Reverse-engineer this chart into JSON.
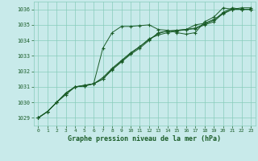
{
  "title": "Graphe pression niveau de la mer (hPa)",
  "bg_color": "#c8eaea",
  "grid_color": "#88ccbb",
  "line_color": "#1a5c28",
  "text_color": "#1a5c28",
  "xlim": [
    -0.5,
    23.5
  ],
  "ylim": [
    1028.5,
    1036.5
  ],
  "yticks": [
    1029,
    1030,
    1031,
    1032,
    1033,
    1034,
    1035,
    1036
  ],
  "xticks": [
    0,
    1,
    2,
    3,
    4,
    5,
    6,
    7,
    8,
    9,
    10,
    11,
    12,
    13,
    14,
    15,
    16,
    17,
    18,
    19,
    20,
    21,
    22,
    23
  ],
  "series": [
    [
      1029.0,
      1029.4,
      1030.0,
      1030.5,
      1031.0,
      1031.1,
      1031.2,
      1033.5,
      1034.5,
      1034.9,
      1034.9,
      1034.95,
      1035.0,
      1034.7,
      1034.65,
      1034.5,
      1034.4,
      1034.5,
      1035.2,
      1035.5,
      1036.1,
      1036.0,
      1036.0,
      1036.0
    ],
    [
      1029.0,
      1029.4,
      1030.0,
      1030.6,
      1031.0,
      1031.05,
      1031.2,
      1031.5,
      1032.1,
      1032.6,
      1033.1,
      1033.5,
      1034.0,
      1034.5,
      1034.6,
      1034.65,
      1034.7,
      1034.8,
      1035.05,
      1035.3,
      1035.8,
      1036.1,
      1036.0,
      1036.0
    ],
    [
      1029.0,
      1029.4,
      1030.0,
      1030.6,
      1031.0,
      1031.05,
      1031.2,
      1031.5,
      1032.15,
      1032.65,
      1033.15,
      1033.6,
      1034.05,
      1034.45,
      1034.6,
      1034.65,
      1034.7,
      1034.75,
      1035.0,
      1035.2,
      1035.75,
      1036.0,
      1036.0,
      1036.0
    ],
    [
      1029.0,
      1029.4,
      1030.0,
      1030.6,
      1031.0,
      1031.1,
      1031.2,
      1031.6,
      1032.2,
      1032.7,
      1033.2,
      1033.6,
      1034.1,
      1034.35,
      1034.5,
      1034.6,
      1034.7,
      1035.0,
      1035.1,
      1035.35,
      1035.7,
      1036.0,
      1036.1,
      1036.1
    ]
  ]
}
